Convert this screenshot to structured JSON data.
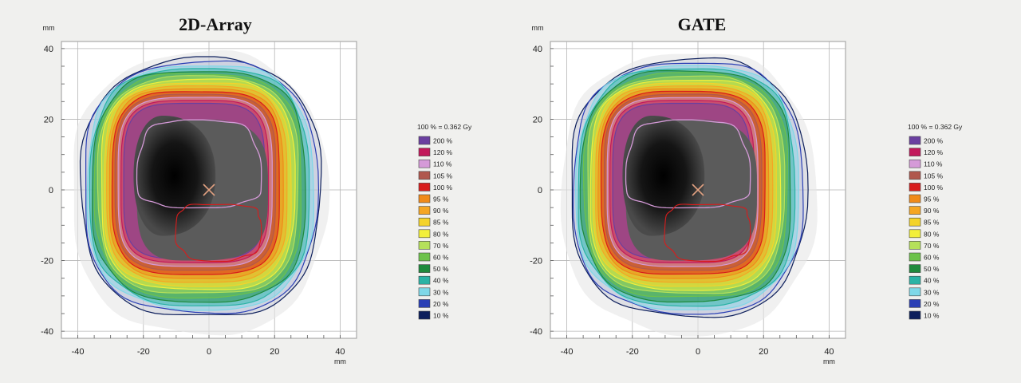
{
  "chart_data": [
    {
      "type": "heatmap",
      "title": "2D-Array",
      "xlabel": "mm",
      "ylabel": "mm",
      "xlim": [
        -45,
        45
      ],
      "ylim": [
        -42,
        42
      ],
      "x_ticks": [
        -40,
        -20,
        0,
        20,
        40
      ],
      "y_ticks": [
        40,
        20,
        0,
        -20,
        -40
      ],
      "grid": true,
      "crosshair_marker": [
        0,
        0
      ],
      "legend_position": "right",
      "reference_dose": "100 % = 0.362 Gy",
      "isodose_levels": [
        {
          "label": "200 %",
          "color": "#6a3fa0"
        },
        {
          "label": "120 %",
          "color": "#c2185b"
        },
        {
          "label": "110 %",
          "color": "#d59ad8"
        },
        {
          "label": "105 %",
          "color": "#b0574d"
        },
        {
          "label": "100 %",
          "color": "#d81c1c"
        },
        {
          "label": "95 %",
          "color": "#f08a1a"
        },
        {
          "label": "90 %",
          "color": "#f5a623"
        },
        {
          "label": "85 %",
          "color": "#f4d32a"
        },
        {
          "label": "80 %",
          "color": "#f2ef3a"
        },
        {
          "label": "70 %",
          "color": "#b5e05a"
        },
        {
          "label": "60 %",
          "color": "#6cc24a"
        },
        {
          "label": "50 %",
          "color": "#1f8a3c"
        },
        {
          "label": "40 %",
          "color": "#2ab3a5"
        },
        {
          "label": "30 %",
          "color": "#7fd8e8"
        },
        {
          "label": "20 %",
          "color": "#2a3fb5"
        },
        {
          "label": "10 %",
          "color": "#0d1f5c"
        }
      ]
    },
    {
      "type": "heatmap",
      "title": "GATE",
      "xlabel": "mm",
      "ylabel": "mm",
      "xlim": [
        -45,
        45
      ],
      "ylim": [
        -42,
        42
      ],
      "x_ticks": [
        -40,
        -20,
        0,
        20,
        40
      ],
      "y_ticks": [
        40,
        20,
        0,
        -20,
        -40
      ],
      "grid": true,
      "crosshair_marker": [
        0,
        0
      ],
      "legend_position": "right",
      "reference_dose": "100 % = 0.362 Gy",
      "isodose_levels": [
        {
          "label": "200 %",
          "color": "#6a3fa0"
        },
        {
          "label": "120 %",
          "color": "#c2185b"
        },
        {
          "label": "110 %",
          "color": "#d59ad8"
        },
        {
          "label": "105 %",
          "color": "#b0574d"
        },
        {
          "label": "100 %",
          "color": "#d81c1c"
        },
        {
          "label": "95 %",
          "color": "#f08a1a"
        },
        {
          "label": "90 %",
          "color": "#f5a623"
        },
        {
          "label": "85 %",
          "color": "#f4d32a"
        },
        {
          "label": "80 %",
          "color": "#f2ef3a"
        },
        {
          "label": "70 %",
          "color": "#b5e05a"
        },
        {
          "label": "60 %",
          "color": "#6cc24a"
        },
        {
          "label": "50 %",
          "color": "#1f8a3c"
        },
        {
          "label": "40 %",
          "color": "#2ab3a5"
        },
        {
          "label": "30 %",
          "color": "#7fd8e8"
        },
        {
          "label": "20 %",
          "color": "#2a3fb5"
        },
        {
          "label": "10 %",
          "color": "#0d1f5c"
        }
      ]
    }
  ]
}
